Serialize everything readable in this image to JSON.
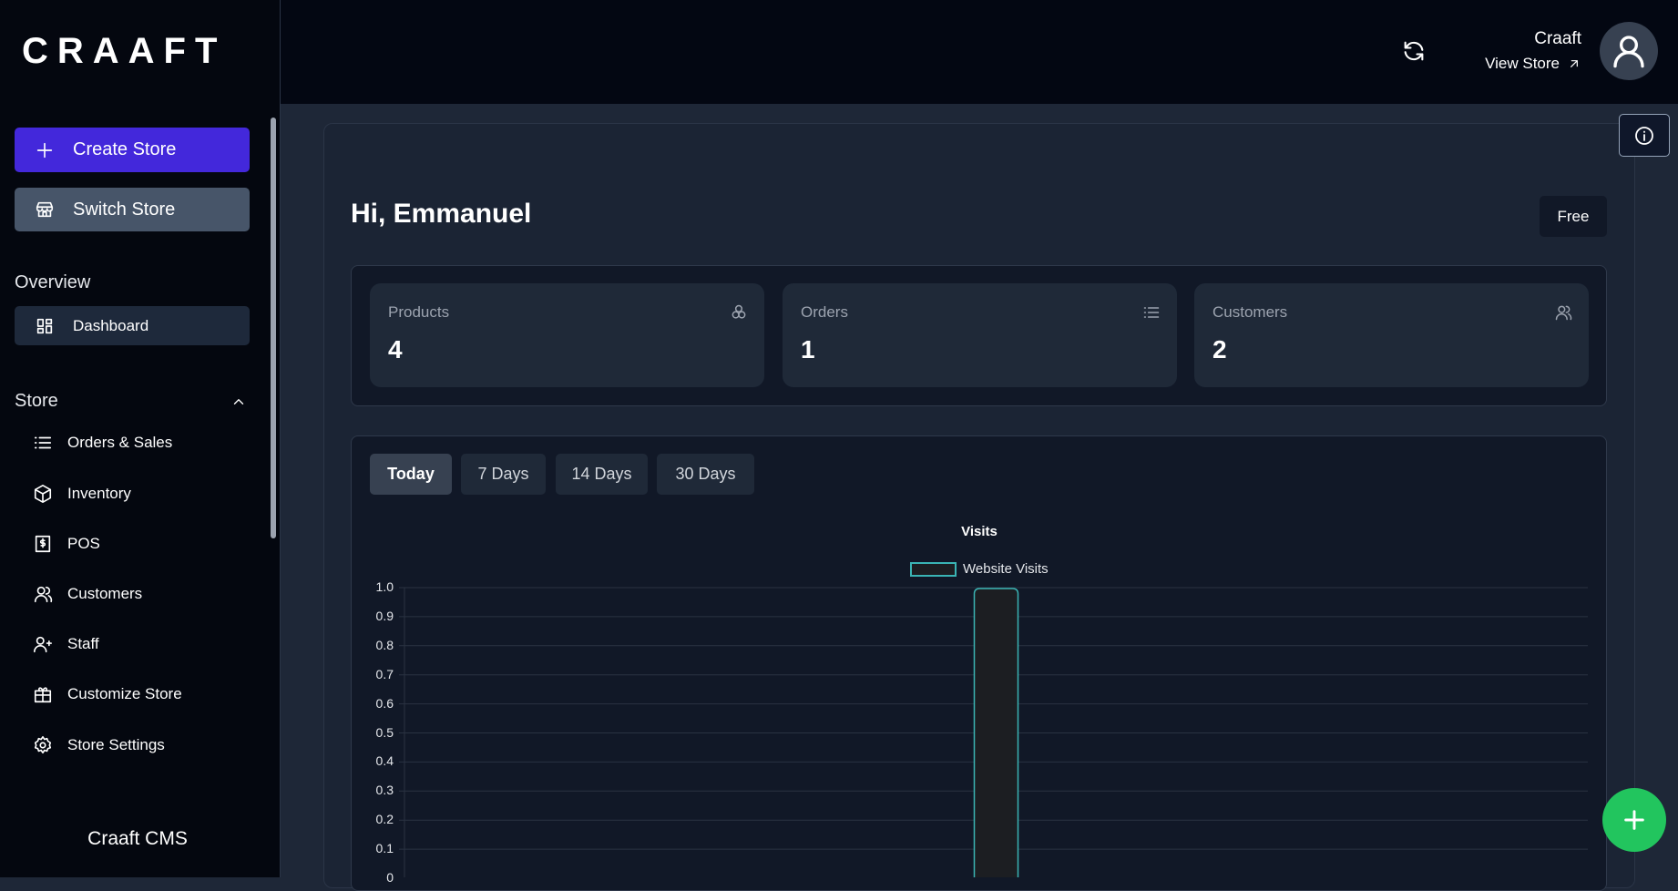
{
  "brand": {
    "logo": "CRAAFT",
    "footer": "Craaft CMS"
  },
  "sidebar": {
    "create_store": "Create Store",
    "switch_store": "Switch Store",
    "overview_label": "Overview",
    "dashboard": "Dashboard",
    "store_label": "Store",
    "items": [
      {
        "label": "Orders & Sales",
        "icon": "list-icon"
      },
      {
        "label": "Inventory",
        "icon": "box-icon"
      },
      {
        "label": "POS",
        "icon": "receipt-icon"
      },
      {
        "label": "Customers",
        "icon": "user-icon"
      },
      {
        "label": "Staff",
        "icon": "users-icon"
      },
      {
        "label": "Customize Store",
        "icon": "gift-icon"
      },
      {
        "label": "Store Settings",
        "icon": "gear-icon"
      }
    ]
  },
  "header": {
    "store_name": "Craaft",
    "view_store": "View Store"
  },
  "main": {
    "greeting": "Hi, Emmanuel",
    "plan_badge": "Free",
    "stats": [
      {
        "label": "Products",
        "value": "4"
      },
      {
        "label": "Orders",
        "value": "1"
      },
      {
        "label": "Customers",
        "value": "2"
      }
    ],
    "tabs": [
      "Today",
      "7 Days",
      "14 Days",
      "30 Days"
    ],
    "active_tab": "Today"
  },
  "colors": {
    "primary": "#4328db",
    "fab": "#22c55e",
    "series_border": "#3ab4b4"
  },
  "chart_data": {
    "type": "bar",
    "title": "Visits",
    "legend": "top",
    "series": [
      {
        "name": "Website Visits",
        "values": [
          1
        ]
      }
    ],
    "ylim": [
      0,
      1
    ],
    "yticks": [
      "1.0",
      "0.9",
      "0.8",
      "0.7",
      "0.6",
      "0.5",
      "0.4",
      "0.3",
      "0.2",
      "0.1",
      "0"
    ],
    "grid": true
  }
}
